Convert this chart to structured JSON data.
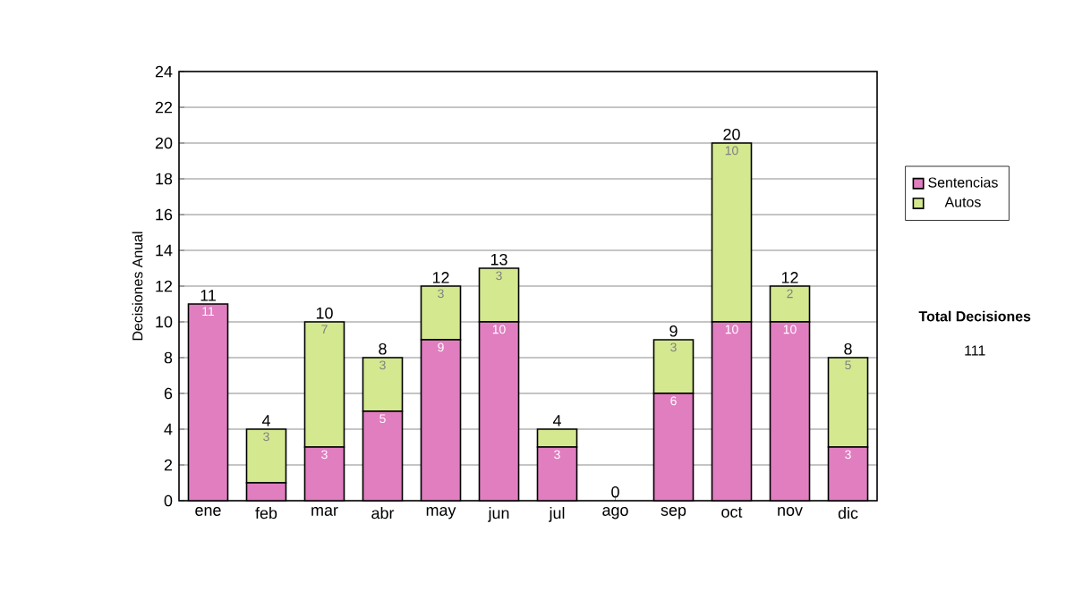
{
  "chart_data": {
    "type": "bar",
    "stacked": true,
    "ylabel": "Decisiones Anual",
    "categories": [
      "ene",
      "feb",
      "mar",
      "abr",
      "may",
      "jun",
      "jul",
      "ago",
      "sep",
      "oct",
      "nov",
      "dic"
    ],
    "series": [
      {
        "name": "Sentencias",
        "color": "#e07ec0",
        "values": [
          11,
          1,
          3,
          5,
          9,
          10,
          3,
          0,
          6,
          10,
          10,
          3
        ],
        "value_labels": [
          "11",
          null,
          "3",
          "5",
          "9",
          "10",
          "3",
          null,
          "6",
          "10",
          "10",
          "3"
        ]
      },
      {
        "name": "Autos",
        "color": "#d4e890",
        "values": [
          0,
          3,
          7,
          3,
          3,
          3,
          1,
          0,
          3,
          10,
          2,
          5
        ],
        "value_labels": [
          null,
          "3",
          "7",
          "3",
          "3",
          "3",
          null,
          null,
          "3",
          "10",
          "2",
          "5"
        ]
      }
    ],
    "totals": [
      "11",
      "4",
      "10",
      "8",
      "12",
      "13",
      "4",
      "0",
      "9",
      "20",
      "12",
      "8"
    ],
    "ylim": [
      0,
      24
    ],
    "yticks": [
      0,
      2,
      4,
      6,
      8,
      10,
      12,
      14,
      16,
      18,
      20,
      22,
      24
    ],
    "grid": "y",
    "legend": "right",
    "annotations": [
      "Total Decisiones",
      "111"
    ]
  }
}
